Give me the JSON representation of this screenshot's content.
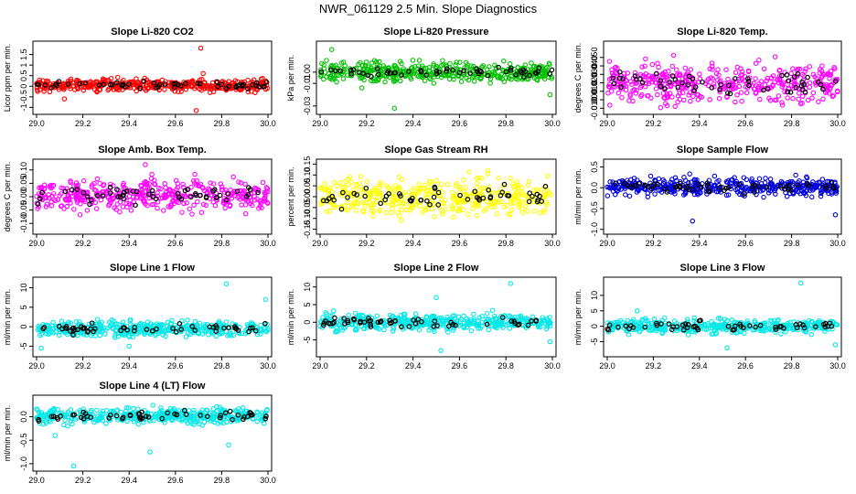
{
  "figure_title": "NWR_061129  2.5 Min. Slope Diagnostics",
  "chart_data": [
    {
      "type": "scatter",
      "title": "Slope Li-820 CO2",
      "ylabel": "Licor ppm per min.",
      "xlim": [
        29.0,
        30.0
      ],
      "ylim": [
        -1.2,
        2.0
      ],
      "x_ticks": [
        "29.0",
        "29.2",
        "29.4",
        "29.6",
        "29.8",
        "30.0"
      ],
      "y_ticks": [
        "-1",
        "-0.5",
        "0",
        "0.5",
        "1",
        "1.5"
      ],
      "color": "#ff0000",
      "center": 0.05,
      "spread": 0.2,
      "outliers": [
        {
          "x": 29.71,
          "y": 1.8
        },
        {
          "x": 29.72,
          "y": 0.6
        },
        {
          "x": 29.69,
          "y": -1.15
        },
        {
          "x": 29.12,
          "y": -0.6
        }
      ]
    },
    {
      "type": "scatter",
      "title": "Slope Li-820 Pressure",
      "ylabel": "kPa per min.",
      "xlim": [
        29.0,
        30.0
      ],
      "ylim": [
        -0.035,
        0.025
      ],
      "x_ticks": [
        "29.0",
        "29.2",
        "29.4",
        "29.6",
        "29.8",
        "30.0"
      ],
      "y_ticks": [
        "-0.03",
        "-0.01",
        "0.00"
      ],
      "color": "#00c000",
      "center": 0.0,
      "spread": 0.006,
      "outliers": [
        {
          "x": 29.32,
          "y": -0.032
        },
        {
          "x": 29.99,
          "y": -0.02
        },
        {
          "x": 29.05,
          "y": 0.02
        },
        {
          "x": 29.18,
          "y": -0.014
        }
      ]
    },
    {
      "type": "scatter",
      "title": "Slope Li-820 Temp.",
      "ylabel": "degrees C per min.",
      "xlim": [
        29.0,
        30.0
      ],
      "ylim": [
        -0.014,
        0.066
      ],
      "x_ticks": [
        "29.0",
        "29.2",
        "29.4",
        "29.6",
        "29.8",
        "30.0"
      ],
      "y_ticks": [
        "-0.010",
        "0.000",
        "0.010",
        "0.020",
        "0.030",
        "0.040",
        "0.050"
      ],
      "color": "#ff00ff",
      "center": 0.02,
      "spread": 0.016,
      "outliers": []
    },
    {
      "type": "scatter",
      "title": "Slope Amb. Box Temp.",
      "ylabel": "degrees C per min.",
      "xlim": [
        29.0,
        30.0
      ],
      "ylim": [
        -0.13,
        0.13
      ],
      "x_ticks": [
        "29.0",
        "29.2",
        "29.4",
        "29.6",
        "29.8",
        "30.0"
      ],
      "y_ticks": [
        "-0.10",
        "-0.05",
        "0.00",
        "0.05",
        "0.10"
      ],
      "color": "#ff00ff",
      "center": 0.005,
      "spread": 0.04,
      "outliers": [
        {
          "x": 29.47,
          "y": 0.12
        }
      ]
    },
    {
      "type": "scatter",
      "title": "Slope Gas Stream RH",
      "ylabel": "percent per min.",
      "xlim": [
        29.0,
        30.0
      ],
      "ylim": [
        -0.16,
        0.16
      ],
      "x_ticks": [
        "29.0",
        "29.2",
        "29.4",
        "29.6",
        "29.8",
        "30.0"
      ],
      "y_ticks": [
        "-0.15",
        "-0.10",
        "-0.05",
        "0.00",
        "0.05",
        "0.10",
        "0.15"
      ],
      "color": "#ffff00",
      "center": 0.0,
      "spread": 0.06,
      "outliers": []
    },
    {
      "type": "scatter",
      "title": "Slope Sample Flow",
      "ylabel": "ml/min per min.",
      "xlim": [
        29.0,
        30.0
      ],
      "ylim": [
        -1.05,
        0.62
      ],
      "x_ticks": [
        "29.0",
        "29.2",
        "29.4",
        "29.6",
        "29.8",
        "30.0"
      ],
      "y_ticks": [
        "-1.0",
        "-0.5",
        "0.0",
        "0.5"
      ],
      "color": "#0000dd",
      "center": 0.02,
      "spread": 0.15,
      "outliers": [
        {
          "x": 29.37,
          "y": -0.8
        },
        {
          "x": 29.99,
          "y": -0.65
        }
      ]
    },
    {
      "type": "scatter",
      "title": "Slope Line 1 Flow",
      "ylabel": "ml/min per min.",
      "xlim": [
        29.0,
        30.0
      ],
      "ylim": [
        -7,
        12
      ],
      "x_ticks": [
        "29.0",
        "29.2",
        "29.4",
        "29.6",
        "29.8",
        "30.0"
      ],
      "y_ticks": [
        "-5",
        "0",
        "5",
        "10"
      ],
      "color": "#00e8e8",
      "center": -0.5,
      "spread": 1.4,
      "outliers": [
        {
          "x": 29.82,
          "y": 11
        },
        {
          "x": 29.99,
          "y": 7
        },
        {
          "x": 29.02,
          "y": -5.5
        },
        {
          "x": 29.4,
          "y": -5
        }
      ]
    },
    {
      "type": "scatter",
      "title": "Slope Line 2 Flow",
      "ylabel": "ml/min per min.",
      "xlim": [
        29.0,
        30.0
      ],
      "ylim": [
        -9,
        12
      ],
      "x_ticks": [
        "29.0",
        "29.2",
        "29.4",
        "29.6",
        "29.8",
        "30.0"
      ],
      "y_ticks": [
        "-5",
        "0",
        "5",
        "10"
      ],
      "color": "#00e8e8",
      "center": 0.0,
      "spread": 1.6,
      "outliers": [
        {
          "x": 29.82,
          "y": 11
        },
        {
          "x": 29.52,
          "y": -8
        },
        {
          "x": 29.99,
          "y": -5.5
        },
        {
          "x": 29.5,
          "y": 7
        }
      ]
    },
    {
      "type": "scatter",
      "title": "Slope Line 3 Flow",
      "ylabel": "ml/min per min.",
      "xlim": [
        29.0,
        30.0
      ],
      "ylim": [
        -9,
        15
      ],
      "x_ticks": [
        "29.0",
        "29.2",
        "29.4",
        "29.6",
        "29.8",
        "30.0"
      ],
      "y_ticks": [
        "-5",
        "0",
        "5",
        "10"
      ],
      "color": "#00e8e8",
      "center": 0.0,
      "spread": 1.6,
      "outliers": [
        {
          "x": 29.84,
          "y": 14
        },
        {
          "x": 29.52,
          "y": -7
        },
        {
          "x": 29.99,
          "y": -6
        },
        {
          "x": 29.13,
          "y": 5
        }
      ]
    },
    {
      "type": "scatter",
      "title": "Slope Line 4 (LT) Flow",
      "ylabel": "ml/min per min.",
      "xlim": [
        29.0,
        30.0
      ],
      "ylim": [
        -1.1,
        0.4
      ],
      "x_ticks": [
        "29.0",
        "29.2",
        "29.4",
        "29.6",
        "29.8",
        "30.0"
      ],
      "y_ticks": [
        "-1.0",
        "-0.5",
        "0.0"
      ],
      "color": "#00e8e8",
      "center": 0.02,
      "spread": 0.12,
      "outliers": [
        {
          "x": 29.16,
          "y": -1.05
        },
        {
          "x": 29.49,
          "y": -0.75
        },
        {
          "x": 29.83,
          "y": -0.6
        },
        {
          "x": 29.08,
          "y": -0.4
        }
      ]
    }
  ]
}
